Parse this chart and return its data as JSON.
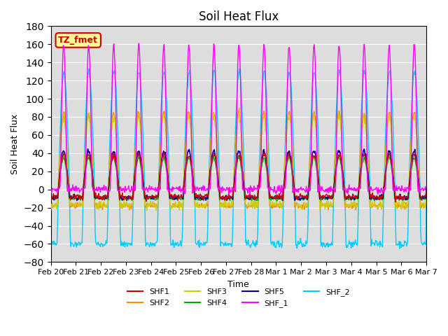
{
  "title": "Soil Heat Flux",
  "xlabel": "Time",
  "ylabel": "Soil Heat Flux",
  "ylim": [
    -80,
    180
  ],
  "yticks": [
    -80,
    -60,
    -40,
    -20,
    0,
    20,
    40,
    60,
    80,
    100,
    120,
    140,
    160,
    180
  ],
  "xtick_labels": [
    "Feb 20",
    "Feb 21",
    "Feb 22",
    "Feb 23",
    "Feb 24",
    "Feb 25",
    "Feb 26",
    "Feb 27",
    "Feb 28",
    "Mar 1",
    "Mar 2",
    "Mar 3",
    "Mar 4",
    "Mar 5",
    "Mar 6",
    "Mar 7"
  ],
  "series_names": [
    "SHF1",
    "SHF2",
    "SHF3",
    "SHF4",
    "SHF5",
    "SHF_1",
    "SHF_2"
  ],
  "colors": {
    "SHF1": "#cc0000",
    "SHF2": "#ff8800",
    "SHF3": "#cccc00",
    "SHF4": "#00aa00",
    "SHF5": "#000099",
    "SHF_1": "#ff00ff",
    "SHF_2": "#00ccff"
  },
  "annotation_text": "TZ_fmet",
  "annotation_bg": "#ffff99",
  "annotation_edge": "#cc0000",
  "bg_color": "#dddddd",
  "n_days": 15,
  "pts_per_day": 48
}
